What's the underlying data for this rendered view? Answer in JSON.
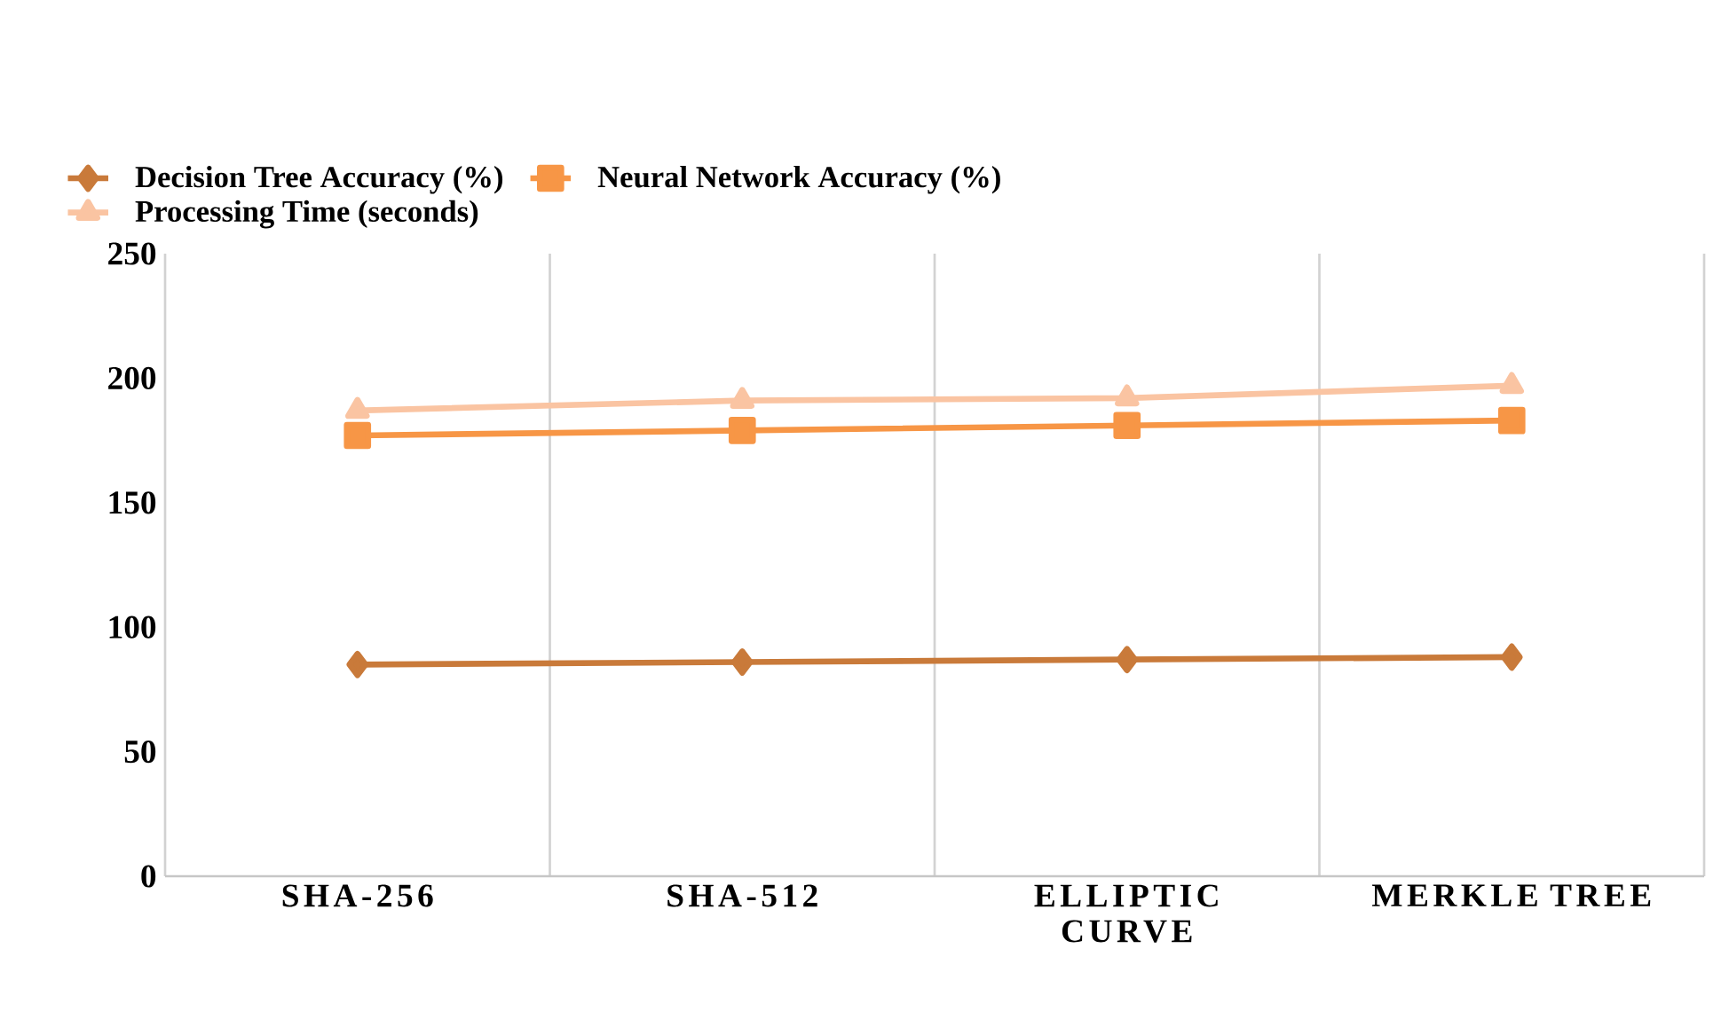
{
  "chart_data": {
    "type": "line",
    "categories": [
      "SHA-256",
      "SHA-512",
      "ELLIPTIC CURVE",
      "MERKLE TREE"
    ],
    "series": [
      {
        "name": "Decision Tree Accuracy (%)",
        "color": "#c97a3a",
        "marker": "diamond",
        "values": [
          85,
          86,
          87,
          88
        ]
      },
      {
        "name": "Neural Network Accuracy (%)",
        "color": "#f79646",
        "marker": "square",
        "values": [
          177,
          179,
          181,
          183
        ]
      },
      {
        "name": "Processing Time (seconds)",
        "color": "#fac4a2",
        "marker": "triangle",
        "values": [
          187,
          191,
          192,
          197
        ]
      }
    ],
    "ylim": [
      0,
      250
    ],
    "yticks": [
      0,
      50,
      100,
      150,
      200,
      250
    ],
    "grid": "x",
    "legend": "top left",
    "line_style": "solid"
  }
}
